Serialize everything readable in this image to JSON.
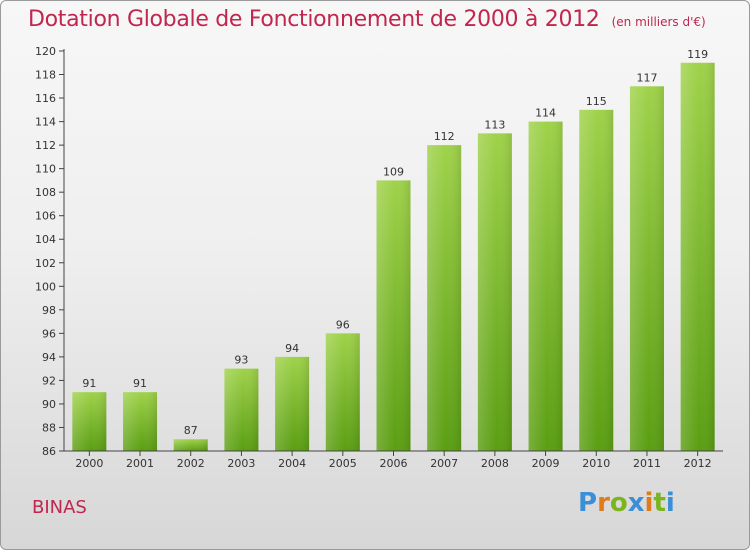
{
  "title": "Dotation Globale de Fonctionnement de 2000 à 2012",
  "subtitle": "(en milliers d'€)",
  "commune": "BINAS",
  "logo": {
    "text": "Proxiti",
    "colors": [
      "#3a8fd6",
      "#e07b1b",
      "#7ab51d",
      "#3a8fd6",
      "#e07b1b",
      "#7ab51d",
      "#3a8fd6"
    ]
  },
  "colors": {
    "title": "#c0264e",
    "bar_top": "#9fd24a",
    "bar_bottom": "#5a9e12",
    "axis": "#444444",
    "text": "#333333"
  },
  "chart_data": {
    "type": "bar",
    "categories": [
      "2000",
      "2001",
      "2002",
      "2003",
      "2004",
      "2005",
      "2006",
      "2007",
      "2008",
      "2009",
      "2010",
      "2011",
      "2012"
    ],
    "values": [
      91,
      91,
      87,
      93,
      94,
      96,
      109,
      112,
      113,
      114,
      115,
      117,
      119
    ],
    "ylim": [
      86,
      120
    ],
    "yticks": [
      86,
      88,
      90,
      92,
      94,
      96,
      98,
      100,
      102,
      104,
      106,
      108,
      110,
      112,
      114,
      116,
      118,
      120
    ],
    "xlabel": "",
    "ylabel": "",
    "grid": false,
    "legend": "none"
  }
}
